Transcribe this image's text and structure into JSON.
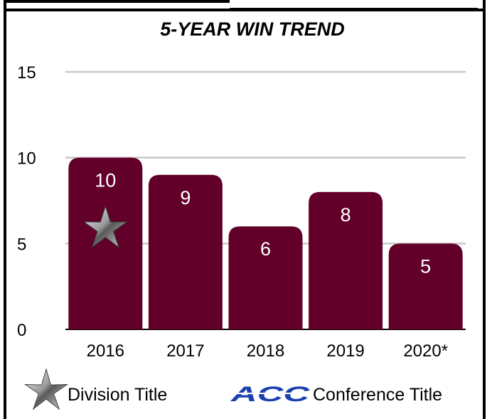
{
  "chart_data": {
    "type": "bar",
    "title": "5-YEAR WIN TREND",
    "categories": [
      "2016",
      "2017",
      "2018",
      "2019",
      "2020*"
    ],
    "values": [
      10,
      9,
      6,
      8,
      5
    ],
    "ylim": [
      0,
      15
    ],
    "yticks": [
      0,
      5,
      10,
      15
    ],
    "grid": true,
    "bar_color": "#620029",
    "division_title_years": [
      "2016"
    ],
    "conference_title_years": []
  },
  "legend": {
    "division_label": "Division Title",
    "division_icon": "silver-star-icon",
    "conference_label": "Conference Title",
    "conference_logo_text": "ACC",
    "conference_icon": "acc-logo-icon",
    "position": "bottom"
  }
}
